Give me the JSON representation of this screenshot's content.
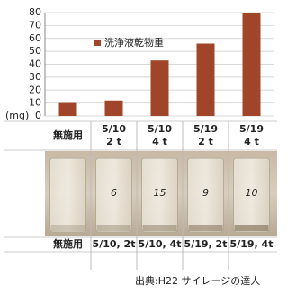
{
  "chart_data": {
    "type": "bar",
    "categories": [
      "無施用",
      "5/10\n2 t",
      "5/10\n4 t",
      "5/19\n2 t",
      "5/19\n4 t"
    ],
    "values": [
      10,
      12,
      43,
      56,
      80
    ],
    "color": "#a0452a",
    "series_name": "洗浄液乾物重",
    "y_unit": "(mg)",
    "ylim": [
      0,
      80
    ],
    "yticks": [
      0,
      10,
      20,
      30,
      40,
      50,
      60,
      70,
      80
    ],
    "grid": true,
    "legend": "upper-left"
  },
  "photo": {
    "jar_marks": [
      "6",
      "15",
      "9",
      "10"
    ],
    "labels": [
      "無施用",
      "5/10, 2t",
      "5/10, 4t",
      "5/19, 2t",
      "5/19, 4t"
    ]
  },
  "source": "出典:H22 サイレージの達人"
}
